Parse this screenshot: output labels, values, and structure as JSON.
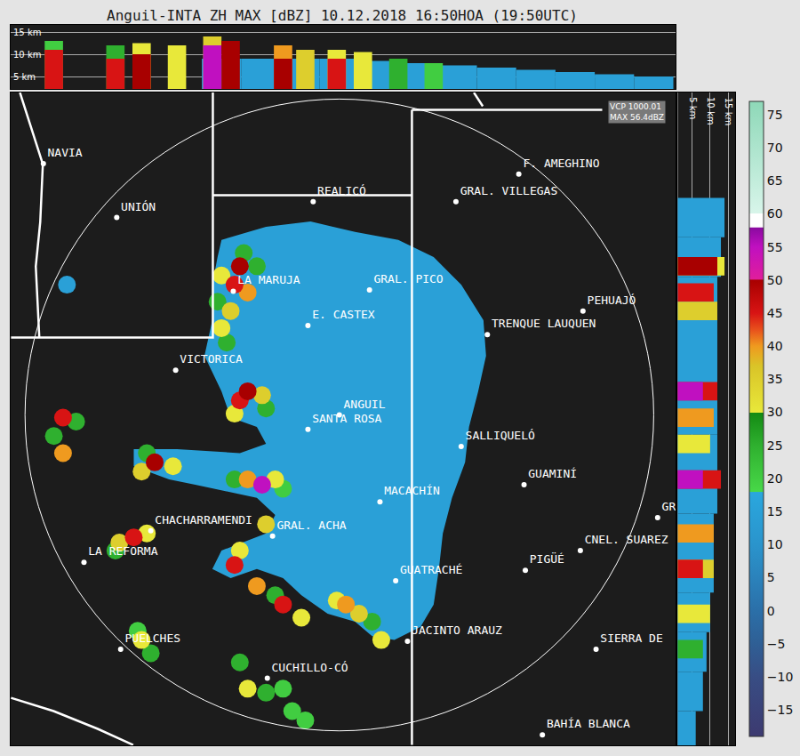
{
  "chart_data": {
    "type": "map",
    "title": "Anguil-INTA ZH MAX [dBZ] 10.12.2018 16:50HOA (19:50UTC)",
    "tick_labels": false,
    "xlim": [
      -251,
      257
    ],
    "ylim": [
      -251,
      245
    ],
    "range_km": 240,
    "info": [
      "VCP 1000.01",
      "MAX 56.4dBZ"
    ],
    "colorbar": {
      "range": [
        -19,
        77
      ],
      "ticks": [
        -15,
        -10,
        -5,
        0,
        5,
        10,
        15,
        20,
        25,
        30,
        35,
        40,
        45,
        50,
        55,
        60,
        65,
        70,
        75
      ]
    },
    "stratiform": {
      "dbz": 15,
      "outline": [
        [
          -90,
          133
        ],
        [
          -56,
          143
        ],
        [
          -22,
          147
        ],
        [
          12,
          139
        ],
        [
          45,
          133
        ],
        [
          72,
          120
        ],
        [
          93,
          99
        ],
        [
          110,
          72
        ],
        [
          112,
          45
        ],
        [
          106,
          18
        ],
        [
          99,
          -9
        ],
        [
          96,
          -36
        ],
        [
          86,
          -63
        ],
        [
          79,
          -90
        ],
        [
          76,
          -117
        ],
        [
          72,
          -144
        ],
        [
          62,
          -161
        ],
        [
          42,
          -171
        ],
        [
          25,
          -168
        ],
        [
          12,
          -157
        ],
        [
          -9,
          -151
        ],
        [
          -29,
          -137
        ],
        [
          -43,
          -124
        ],
        [
          -63,
          -117
        ],
        [
          -83,
          -124
        ],
        [
          -97,
          -117
        ],
        [
          -90,
          -103
        ],
        [
          -56,
          -90
        ],
        [
          -49,
          -76
        ],
        [
          -63,
          -63
        ],
        [
          -110,
          -53
        ],
        [
          -130,
          -49
        ],
        [
          -157,
          -39
        ],
        [
          -157,
          -26
        ],
        [
          -124,
          -26
        ],
        [
          -76,
          -29
        ],
        [
          -56,
          -22
        ],
        [
          -63,
          -9
        ],
        [
          -83,
          -2
        ],
        [
          -90,
          18
        ],
        [
          -103,
          45
        ],
        [
          -97,
          72
        ],
        [
          -97,
          99
        ],
        [
          -93,
          120
        ]
      ]
    },
    "echoes": [
      [
        -93,
        86,
        25
      ],
      [
        -86,
        55,
        25
      ],
      [
        -63,
        113,
        25
      ],
      [
        -73,
        123,
        25
      ],
      [
        -90,
        106,
        30
      ],
      [
        -90,
        66,
        30
      ],
      [
        -83,
        79,
        35
      ],
      [
        -70,
        93,
        40
      ],
      [
        -80,
        99,
        45
      ],
      [
        -76,
        113,
        50
      ],
      [
        -56,
        5,
        25
      ],
      [
        -80,
        1,
        30
      ],
      [
        -59,
        15,
        35
      ],
      [
        -76,
        11,
        45
      ],
      [
        -70,
        18,
        50
      ],
      [
        -218,
        -16,
        25
      ],
      [
        -201,
        -5,
        25
      ],
      [
        -211,
        -29,
        40
      ],
      [
        -211,
        -2,
        45
      ],
      [
        -147,
        -29,
        25
      ],
      [
        -127,
        -39,
        30
      ],
      [
        -151,
        -43,
        35
      ],
      [
        -141,
        -36,
        50
      ],
      [
        -43,
        -56,
        20
      ],
      [
        -80,
        -49,
        25
      ],
      [
        -49,
        -49,
        30
      ],
      [
        -70,
        -49,
        40
      ],
      [
        -59,
        -53,
        55
      ],
      [
        -171,
        -103,
        25
      ],
      [
        -147,
        -90,
        30
      ],
      [
        -168,
        -97,
        35
      ],
      [
        -157,
        -93,
        45
      ],
      [
        -56,
        -83,
        35
      ],
      [
        -49,
        -137,
        25
      ],
      [
        -76,
        -103,
        30
      ],
      [
        -29,
        -154,
        30
      ],
      [
        -63,
        -130,
        40
      ],
      [
        -80,
        -114,
        45
      ],
      [
        -43,
        -144,
        45
      ],
      [
        25,
        -157,
        25
      ],
      [
        -2,
        -141,
        30
      ],
      [
        32,
        -171,
        30
      ],
      [
        15,
        -151,
        35
      ],
      [
        5,
        -144,
        40
      ],
      [
        -154,
        -164,
        20
      ],
      [
        -144,
        -181,
        25
      ],
      [
        -151,
        -171,
        30
      ],
      [
        -26,
        -232,
        20
      ],
      [
        -43,
        -208,
        20
      ],
      [
        -36,
        -225,
        20
      ],
      [
        -76,
        -188,
        25
      ],
      [
        -56,
        -211,
        25
      ],
      [
        -70,
        -208,
        30
      ],
      [
        -208,
        99,
        15
      ]
    ],
    "cities": [
      {
        "name": "NAVIA",
        "x": -226,
        "y": 191
      },
      {
        "name": "UNIÓN",
        "x": -170,
        "y": 150
      },
      {
        "name": "REALICÓ",
        "x": -20,
        "y": 162
      },
      {
        "name": "GRAL. VILLEGAS",
        "x": 89,
        "y": 162
      },
      {
        "name": "F. AMEGHINO",
        "x": 137,
        "y": 183
      },
      {
        "name": "LA MARUJA",
        "x": -81,
        "y": 94
      },
      {
        "name": "GRAL. PICO",
        "x": 23,
        "y": 95
      },
      {
        "name": "E. CASTEX",
        "x": -24,
        "y": 68
      },
      {
        "name": "PEHUAJÓ",
        "x": 186,
        "y": 79
      },
      {
        "name": "TRENQUE LAUQUEN",
        "x": 113,
        "y": 61
      },
      {
        "name": "VICTORICA",
        "x": -125,
        "y": 34
      },
      {
        "name": "ANGUIL",
        "x": 0,
        "y": 0
      },
      {
        "name": "SANTA ROSA",
        "x": -24,
        "y": -11
      },
      {
        "name": "SALLIQUELÓ",
        "x": 93,
        "y": -24
      },
      {
        "name": "GUAMINÍ",
        "x": 141,
        "y": -53
      },
      {
        "name": "MACACHÍN",
        "x": 31,
        "y": -66
      },
      {
        "name": "CHACHARRAMENDI",
        "x": -144,
        "y": -88
      },
      {
        "name": "GRAL. ACHA",
        "x": -51,
        "y": -92
      },
      {
        "name": "LA REFORMA",
        "x": -195,
        "y": -112
      },
      {
        "name": "GR",
        "x": 243,
        "y": -78
      },
      {
        "name": "CNEL. SUAREZ",
        "x": 184,
        "y": -103
      },
      {
        "name": "PIGÜÉ",
        "x": 142,
        "y": -118
      },
      {
        "name": "GUATRACHÉ",
        "x": 43,
        "y": -126
      },
      {
        "name": "JACINTO ARAUZ",
        "x": 52,
        "y": -172
      },
      {
        "name": "PUELCHES",
        "x": -167,
        "y": -178
      },
      {
        "name": "SIERRA DE",
        "x": 196,
        "y": -178
      },
      {
        "name": "CUCHILLO-CÓ",
        "x": -55,
        "y": -200
      },
      {
        "name": "BAHÍA BLANCA",
        "x": 155,
        "y": -243
      }
    ],
    "boundaries": [
      [
        [
          -96.6,
          245
        ],
        [
          -96.6,
          58.8
        ],
        [
          -250.7,
          58.8
        ]
      ],
      [
        [
          -96.6,
          166.9
        ],
        [
          55.4,
          166.9
        ]
      ],
      [
        [
          55.4,
          231.8
        ],
        [
          55.4,
          -250.7
        ]
      ],
      [
        [
          55.4,
          231.8
        ],
        [
          200.7,
          231.8
        ]
      ],
      [
        [
          102.7,
          245
        ],
        [
          109.5,
          234.5
        ]
      ],
      [
        [
          -243.9,
          245
        ],
        [
          -226.4,
          190.5
        ],
        [
          -228.4,
          146.6
        ],
        [
          -231.8,
          112.8
        ],
        [
          -229.1,
          58.8
        ]
      ],
      [
        [
          -250.7,
          -214.9
        ],
        [
          -218.2,
          -225
        ],
        [
          -184.5,
          -238.5
        ],
        [
          -157.4,
          -250.7
        ]
      ]
    ],
    "cross_section_top": {
      "zlim": [
        2.2,
        16.6
      ],
      "zticks": [
        {
          "value": 5,
          "label": "5 km"
        },
        {
          "value": 10,
          "label": "10 km"
        },
        {
          "value": 15,
          "label": "15 km"
        }
      ],
      "columns": [
        [
          -90,
          9,
          15
        ],
        [
          -60,
          9,
          15
        ],
        [
          -30,
          9,
          15
        ],
        [
          0,
          9,
          15
        ],
        [
          30,
          8.5,
          15
        ],
        [
          60,
          8,
          15
        ],
        [
          90,
          7.5,
          15
        ],
        [
          120,
          7,
          15
        ],
        [
          150,
          6.5,
          15
        ],
        [
          180,
          6,
          15
        ],
        [
          210,
          5.5,
          15
        ],
        [
          240,
          5,
          15
        ],
        [
          -218,
          13,
          20
        ],
        [
          -218,
          11,
          45
        ],
        [
          -171,
          12,
          25
        ],
        [
          -171,
          9,
          45
        ],
        [
          -151,
          12.5,
          30
        ],
        [
          -151,
          10,
          50
        ],
        [
          -124,
          12,
          30
        ],
        [
          -97,
          14,
          35
        ],
        [
          -97,
          12,
          55
        ],
        [
          -83,
          13,
          50
        ],
        [
          -43,
          12,
          40
        ],
        [
          -43,
          9,
          50
        ],
        [
          -26,
          11,
          35
        ],
        [
          -2,
          11,
          30
        ],
        [
          -2,
          9,
          45
        ],
        [
          18,
          10.5,
          30
        ],
        [
          45,
          9,
          25
        ],
        [
          72,
          8,
          20
        ]
      ]
    },
    "cross_section_right": {
      "zlim": [
        1,
        17
      ],
      "zticks": [
        {
          "value": 5,
          "label": "5 km"
        },
        {
          "value": 10,
          "label": "10 km"
        },
        {
          "value": 15,
          "label": "15 km"
        }
      ],
      "rows": [
        [
          150,
          14,
          15
        ],
        [
          120,
          13,
          15
        ],
        [
          90,
          12,
          15
        ],
        [
          60,
          12,
          15
        ],
        [
          30,
          12,
          15
        ],
        [
          0,
          12,
          15
        ],
        [
          -30,
          12,
          15
        ],
        [
          -60,
          12,
          15
        ],
        [
          -90,
          11,
          15
        ],
        [
          -120,
          11,
          15
        ],
        [
          -150,
          10,
          15
        ],
        [
          -180,
          9,
          15
        ],
        [
          -210,
          8,
          15
        ],
        [
          -240,
          6,
          15
        ],
        [
          113,
          14,
          30
        ],
        [
          113,
          12,
          50
        ],
        [
          93,
          11,
          45
        ],
        [
          79,
          12,
          35
        ],
        [
          18,
          12,
          45
        ],
        [
          18,
          8,
          55
        ],
        [
          -2,
          11,
          40
        ],
        [
          -22,
          10,
          30
        ],
        [
          -49,
          13,
          45
        ],
        [
          -49,
          8,
          55
        ],
        [
          -90,
          11,
          40
        ],
        [
          -117,
          11,
          35
        ],
        [
          -117,
          8,
          45
        ],
        [
          -151,
          10,
          30
        ],
        [
          -178,
          8,
          25
        ]
      ]
    }
  }
}
